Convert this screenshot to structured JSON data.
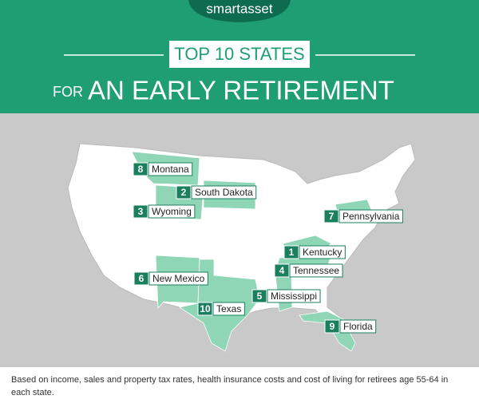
{
  "brand": "smartasset",
  "title": {
    "prefix": "FOR",
    "line1": "TOP 10 STATES",
    "line2": "AN EARLY RETIREMENT"
  },
  "labels": [
    {
      "rank": 1,
      "state": "Kentucky"
    },
    {
      "rank": 2,
      "state": "South Dakota"
    },
    {
      "rank": 3,
      "state": "Wyoming"
    },
    {
      "rank": 4,
      "state": "Tennessee"
    },
    {
      "rank": 5,
      "state": "Mississippi"
    },
    {
      "rank": 6,
      "state": "New Mexico"
    },
    {
      "rank": 7,
      "state": "Pennsylvania"
    },
    {
      "rank": 8,
      "state": "Montana"
    },
    {
      "rank": 9,
      "state": "Florida"
    },
    {
      "rank": 10,
      "state": "Texas"
    }
  ],
  "footnote": "Based on income, sales and property tax rates, health insurance costs and cost of living for retirees age 55-64 in each state."
}
